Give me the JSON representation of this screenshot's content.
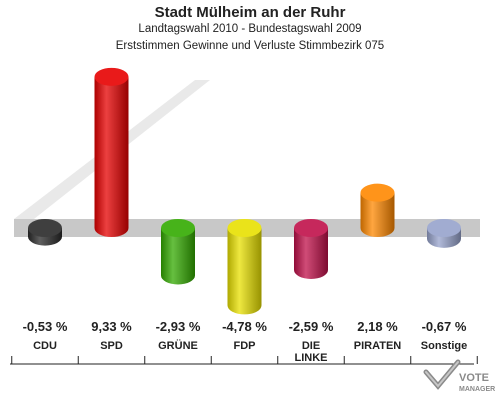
{
  "header": {
    "title": "Stadt Mülheim an der Ruhr",
    "subtitle1": "Landtagswahl 2010 - Bundestagswahl 2009",
    "subtitle2": "Erststimmen Gewinne und Verluste Stimmbezirk 075"
  },
  "logo": {
    "line1": "VOTE",
    "line2": "MANAGER"
  },
  "chart_data": {
    "type": "bar",
    "title": "Stadt Mülheim an der Ruhr",
    "subtitle": "Landtagswahl 2010 - Bundestagswahl 2009 / Erststimmen Gewinne und Verluste Stimmbezirk 075",
    "unit": "%",
    "categories": [
      "CDU",
      "SPD",
      "GRÜNE",
      "FDP",
      "DIE LINKE",
      "PIRATEN",
      "Sonstige"
    ],
    "values": [
      -0.53,
      9.33,
      -2.93,
      -4.78,
      -2.59,
      2.18,
      -0.67
    ],
    "value_labels": [
      "-0,53 %",
      "9,33 %",
      "-2,93 %",
      "-4,78 %",
      "-2,59 %",
      "2,18 %",
      "-0,67 %"
    ],
    "category_labels": [
      [
        "CDU"
      ],
      [
        "SPD"
      ],
      [
        "GRÜNE"
      ],
      [
        "FDP"
      ],
      [
        "DIE",
        "LINKE"
      ],
      [
        "PIRATEN"
      ],
      [
        "Sonstige"
      ]
    ],
    "colors": [
      "#2a2a2a",
      "#e60000",
      "#33aa00",
      "#e8e000",
      "#c0104a",
      "#ff8800",
      "#97a3cc"
    ]
  }
}
